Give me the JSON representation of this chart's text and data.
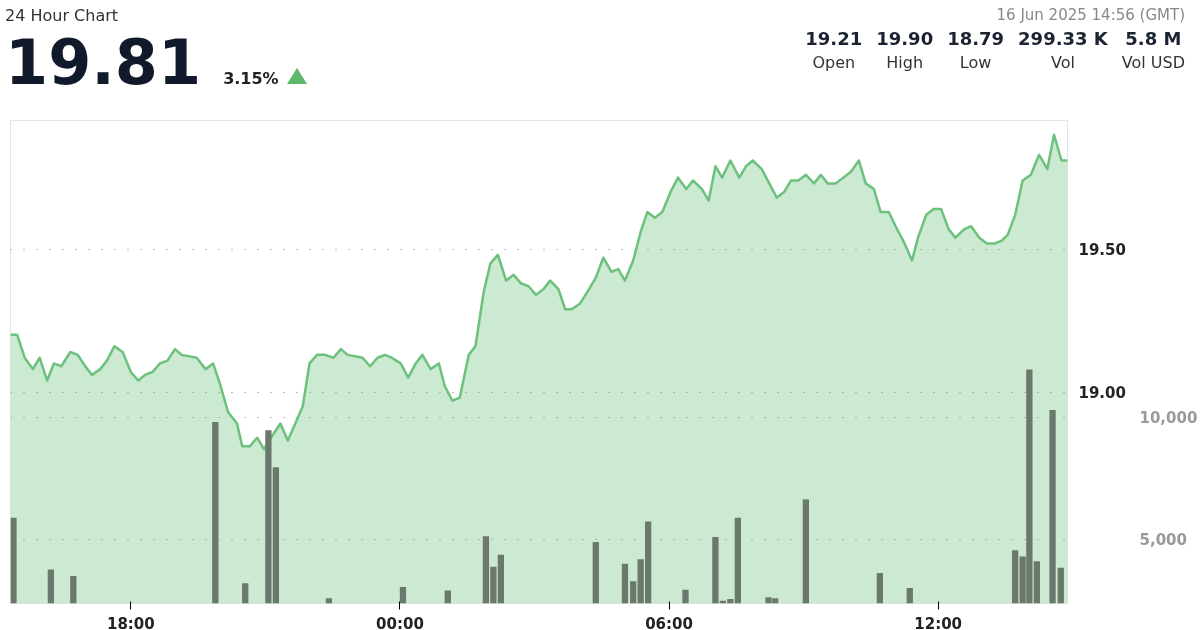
{
  "chart_data": {
    "type": "area",
    "title": "24 Hour Chart",
    "annotations": [
      "19.81",
      "3.15%",
      "16 Jun 2025 14:56 (GMT)",
      "19.21",
      "Open",
      "19.90",
      "High",
      "18.79",
      "Low",
      "299.33 K",
      "Vol",
      "5.8 M",
      "Vol USD"
    ],
    "xlim": [
      "2025-06-15T15:19",
      "2025-06-16T14:53"
    ],
    "xticks": [
      {
        "value": "2025-06-15T18:00",
        "label": "18:00"
      },
      {
        "value": "2025-06-16T00:00",
        "label": "00:00"
      },
      {
        "value": "2025-06-16T06:00",
        "label": "06:00"
      },
      {
        "value": "2025-06-16T12:00",
        "label": "12:00"
      }
    ],
    "ylim": [
      18.26,
      19.95
    ],
    "yticks": [
      {
        "value": 19.0,
        "label": "19.00"
      },
      {
        "value": 19.5,
        "label": "19.50"
      }
    ],
    "y2lim": [
      2350,
      22200
    ],
    "y2ticks": [
      {
        "value": 5000,
        "label": "5,000"
      },
      {
        "value": 10000,
        "label": "10,000"
      }
    ],
    "grid": "y",
    "series": [
      {
        "color": "#6cc17d",
        "x": [
          "2025-06-15T15:19",
          "2025-06-15T15:28",
          "2025-06-15T15:38",
          "2025-06-15T15:49",
          "2025-06-15T15:58",
          "2025-06-15T16:08",
          "2025-06-15T16:17",
          "2025-06-15T16:27",
          "2025-06-15T16:39",
          "2025-06-15T16:49",
          "2025-06-15T16:59",
          "2025-06-15T17:08",
          "2025-06-15T17:19",
          "2025-06-15T17:28",
          "2025-06-15T17:38",
          "2025-06-15T17:49",
          "2025-06-15T18:00",
          "2025-06-15T18:10",
          "2025-06-15T18:19",
          "2025-06-15T18:29",
          "2025-06-15T18:39",
          "2025-06-15T18:49",
          "2025-06-15T18:59",
          "2025-06-15T19:08",
          "2025-06-15T19:28",
          "2025-06-15T19:40",
          "2025-06-15T19:50",
          "2025-06-15T19:59",
          "2025-06-15T20:10",
          "2025-06-15T20:22",
          "2025-06-15T20:29",
          "2025-06-15T20:39",
          "2025-06-15T20:49",
          "2025-06-15T20:58",
          "2025-06-15T21:10",
          "2025-06-15T21:20",
          "2025-06-15T21:30",
          "2025-06-15T21:40",
          "2025-06-15T21:50",
          "2025-06-15T21:59",
          "2025-06-15T22:09",
          "2025-06-15T22:20",
          "2025-06-15T22:31",
          "2025-06-15T22:41",
          "2025-06-15T22:50",
          "2025-06-15T23:10",
          "2025-06-15T23:20",
          "2025-06-15T23:30",
          "2025-06-15T23:40",
          "2025-06-15T23:49",
          "2025-06-16T00:01",
          "2025-06-16T00:11",
          "2025-06-16T00:21",
          "2025-06-16T00:30",
          "2025-06-16T00:41",
          "2025-06-16T00:52",
          "2025-06-16T01:00",
          "2025-06-16T01:10",
          "2025-06-16T01:20",
          "2025-06-16T01:32",
          "2025-06-16T01:41",
          "2025-06-16T01:52",
          "2025-06-16T02:01",
          "2025-06-16T02:11",
          "2025-06-16T02:22",
          "2025-06-16T02:32",
          "2025-06-16T02:42",
          "2025-06-16T02:52",
          "2025-06-16T03:02",
          "2025-06-16T03:12",
          "2025-06-16T03:21",
          "2025-06-16T03:32",
          "2025-06-16T03:41",
          "2025-06-16T03:50",
          "2025-06-16T04:01",
          "2025-06-16T04:13",
          "2025-06-16T04:22",
          "2025-06-16T04:32",
          "2025-06-16T04:43",
          "2025-06-16T04:52",
          "2025-06-16T05:01",
          "2025-06-16T05:12",
          "2025-06-16T05:22",
          "2025-06-16T05:31",
          "2025-06-16T05:41",
          "2025-06-16T05:51",
          "2025-06-16T06:02",
          "2025-06-16T06:12",
          "2025-06-16T06:23",
          "2025-06-16T06:32",
          "2025-06-16T06:44",
          "2025-06-16T06:53",
          "2025-06-16T07:02",
          "2025-06-16T07:11",
          "2025-06-16T07:22",
          "2025-06-16T07:34",
          "2025-06-16T07:43",
          "2025-06-16T07:52",
          "2025-06-16T08:04",
          "2025-06-16T08:14",
          "2025-06-16T08:24",
          "2025-06-16T08:34",
          "2025-06-16T08:43",
          "2025-06-16T08:53",
          "2025-06-16T09:03",
          "2025-06-16T09:14",
          "2025-06-16T09:23",
          "2025-06-16T09:32",
          "2025-06-16T09:43",
          "2025-06-16T09:53",
          "2025-06-16T10:03",
          "2025-06-16T10:14",
          "2025-06-16T10:23",
          "2025-06-16T10:34",
          "2025-06-16T10:43",
          "2025-06-16T10:54",
          "2025-06-16T11:03",
          "2025-06-16T11:15",
          "2025-06-16T11:25",
          "2025-06-16T11:33",
          "2025-06-16T11:44",
          "2025-06-16T11:54",
          "2025-06-16T12:04",
          "2025-06-16T12:14",
          "2025-06-16T12:23",
          "2025-06-16T12:35",
          "2025-06-16T12:44",
          "2025-06-16T12:55",
          "2025-06-16T13:05",
          "2025-06-16T13:16",
          "2025-06-16T13:25",
          "2025-06-16T13:33",
          "2025-06-16T13:43",
          "2025-06-16T13:53",
          "2025-06-16T14:04",
          "2025-06-16T14:15",
          "2025-06-16T14:26",
          "2025-06-16T14:35",
          "2025-06-16T14:45",
          "2025-06-16T14:53"
        ],
        "values": [
          19.2,
          19.2,
          19.12,
          19.08,
          19.12,
          19.04,
          19.1,
          19.09,
          19.14,
          19.13,
          19.09,
          19.06,
          19.08,
          19.11,
          19.16,
          19.14,
          19.07,
          19.04,
          19.06,
          19.07,
          19.1,
          19.11,
          19.15,
          19.13,
          19.12,
          19.08,
          19.1,
          19.03,
          18.93,
          18.89,
          18.81,
          18.81,
          18.84,
          18.8,
          18.85,
          18.89,
          18.83,
          18.89,
          18.95,
          19.1,
          19.13,
          19.13,
          19.12,
          19.15,
          19.13,
          19.12,
          19.09,
          19.12,
          19.13,
          19.12,
          19.1,
          19.05,
          19.1,
          19.13,
          19.08,
          19.1,
          19.02,
          18.97,
          18.98,
          19.13,
          19.16,
          19.35,
          19.45,
          19.48,
          19.39,
          19.41,
          19.38,
          19.37,
          19.34,
          19.36,
          19.39,
          19.36,
          19.29,
          19.29,
          19.31,
          19.36,
          19.4,
          19.47,
          19.42,
          19.43,
          19.39,
          19.46,
          19.56,
          19.63,
          19.61,
          19.63,
          19.7,
          19.75,
          19.71,
          19.74,
          19.71,
          19.67,
          19.79,
          19.75,
          19.81,
          19.75,
          19.79,
          19.81,
          19.78,
          19.73,
          19.68,
          19.7,
          19.74,
          19.74,
          19.76,
          19.73,
          19.76,
          19.73,
          19.73,
          19.75,
          19.77,
          19.81,
          19.73,
          19.71,
          19.63,
          19.63,
          19.58,
          19.52,
          19.46,
          19.54,
          19.62,
          19.64,
          19.64,
          19.57,
          19.54,
          19.57,
          19.58,
          19.54,
          19.52,
          19.52,
          19.53,
          19.55,
          19.62,
          19.74,
          19.76,
          19.83,
          19.78,
          19.9,
          19.81,
          19.81
        ]
      },
      {
        "type": "bar",
        "axis": "y2",
        "color": "#6b786c",
        "x": [
          "2025-06-15T15:23",
          "2025-06-15T16:13",
          "2025-06-15T16:43",
          "2025-06-15T19:53",
          "2025-06-15T20:33",
          "2025-06-15T21:04",
          "2025-06-15T21:14",
          "2025-06-15T22:25",
          "2025-06-16T00:04",
          "2025-06-16T01:04",
          "2025-06-16T01:55",
          "2025-06-16T02:05",
          "2025-06-16T02:15",
          "2025-06-16T04:22",
          "2025-06-16T05:01",
          "2025-06-16T05:12",
          "2025-06-16T05:22",
          "2025-06-16T05:32",
          "2025-06-16T06:22",
          "2025-06-16T07:02",
          "2025-06-16T07:12",
          "2025-06-16T07:22",
          "2025-06-16T07:32",
          "2025-06-16T08:13",
          "2025-06-16T08:22",
          "2025-06-16T09:03",
          "2025-06-16T10:42",
          "2025-06-16T11:22",
          "2025-06-16T13:43",
          "2025-06-16T13:53",
          "2025-06-16T14:02",
          "2025-06-16T14:12",
          "2025-06-16T14:33",
          "2025-06-16T14:44"
        ],
        "values": [
          5870,
          3750,
          3480,
          9810,
          3180,
          9470,
          7950,
          2570,
          3030,
          2880,
          5110,
          3860,
          4350,
          4880,
          3980,
          3260,
          4170,
          5720,
          2920,
          5080,
          2460,
          2540,
          5870,
          2610,
          2570,
          6630,
          3600,
          2990,
          4540,
          4280,
          11970,
          4090,
          10300,
          3820
        ]
      }
    ]
  }
}
